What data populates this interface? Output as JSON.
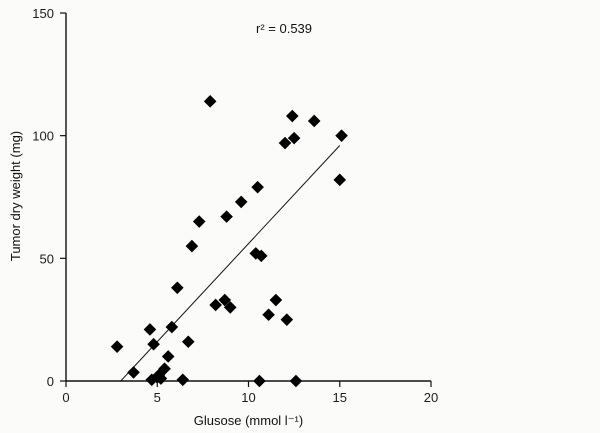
{
  "chart_data": {
    "type": "scatter",
    "title": "",
    "xlabel": "Glusose (mmol l⁻¹)",
    "ylabel": "Tumor dry weight (mg)",
    "xlim": [
      0,
      20
    ],
    "ylim": [
      0,
      150
    ],
    "x_ticks": [
      0,
      5,
      10,
      15,
      20
    ],
    "y_ticks": [
      0,
      50,
      100,
      150
    ],
    "x_tick_labels": [
      "0",
      "5",
      "10",
      "15",
      "20"
    ],
    "y_tick_labels": [
      "0",
      "50",
      "100",
      "150"
    ],
    "annotation": "r² = 0.539",
    "grid": false,
    "legend": "none",
    "marker": "diamond",
    "marker_color": "#000000",
    "series": [
      {
        "x": [
          2.8,
          3.7,
          4.6,
          4.7,
          4.8,
          5.0,
          5.1,
          5.2,
          5.4,
          5.6,
          5.8,
          6.1,
          6.4,
          6.7,
          6.9,
          7.3,
          7.9,
          8.2,
          8.7,
          8.8,
          9.0,
          9.6,
          10.4,
          10.5,
          10.6,
          10.7,
          11.1,
          11.5,
          12.0,
          12.1,
          12.4,
          12.5,
          12.6,
          13.6,
          15.0,
          15.1
        ],
        "y": [
          14,
          3.5,
          21,
          0.5,
          15,
          1.5,
          2.5,
          1,
          5,
          10,
          22,
          38,
          0.5,
          16,
          55,
          65,
          114,
          31,
          33,
          67,
          30,
          73,
          52,
          79,
          0,
          51,
          27,
          33,
          97,
          25,
          108,
          99,
          0,
          106,
          82,
          100
        ]
      }
    ],
    "fit_line": {
      "x": [
        3.0,
        15.0
      ],
      "y": [
        0,
        96
      ]
    }
  }
}
